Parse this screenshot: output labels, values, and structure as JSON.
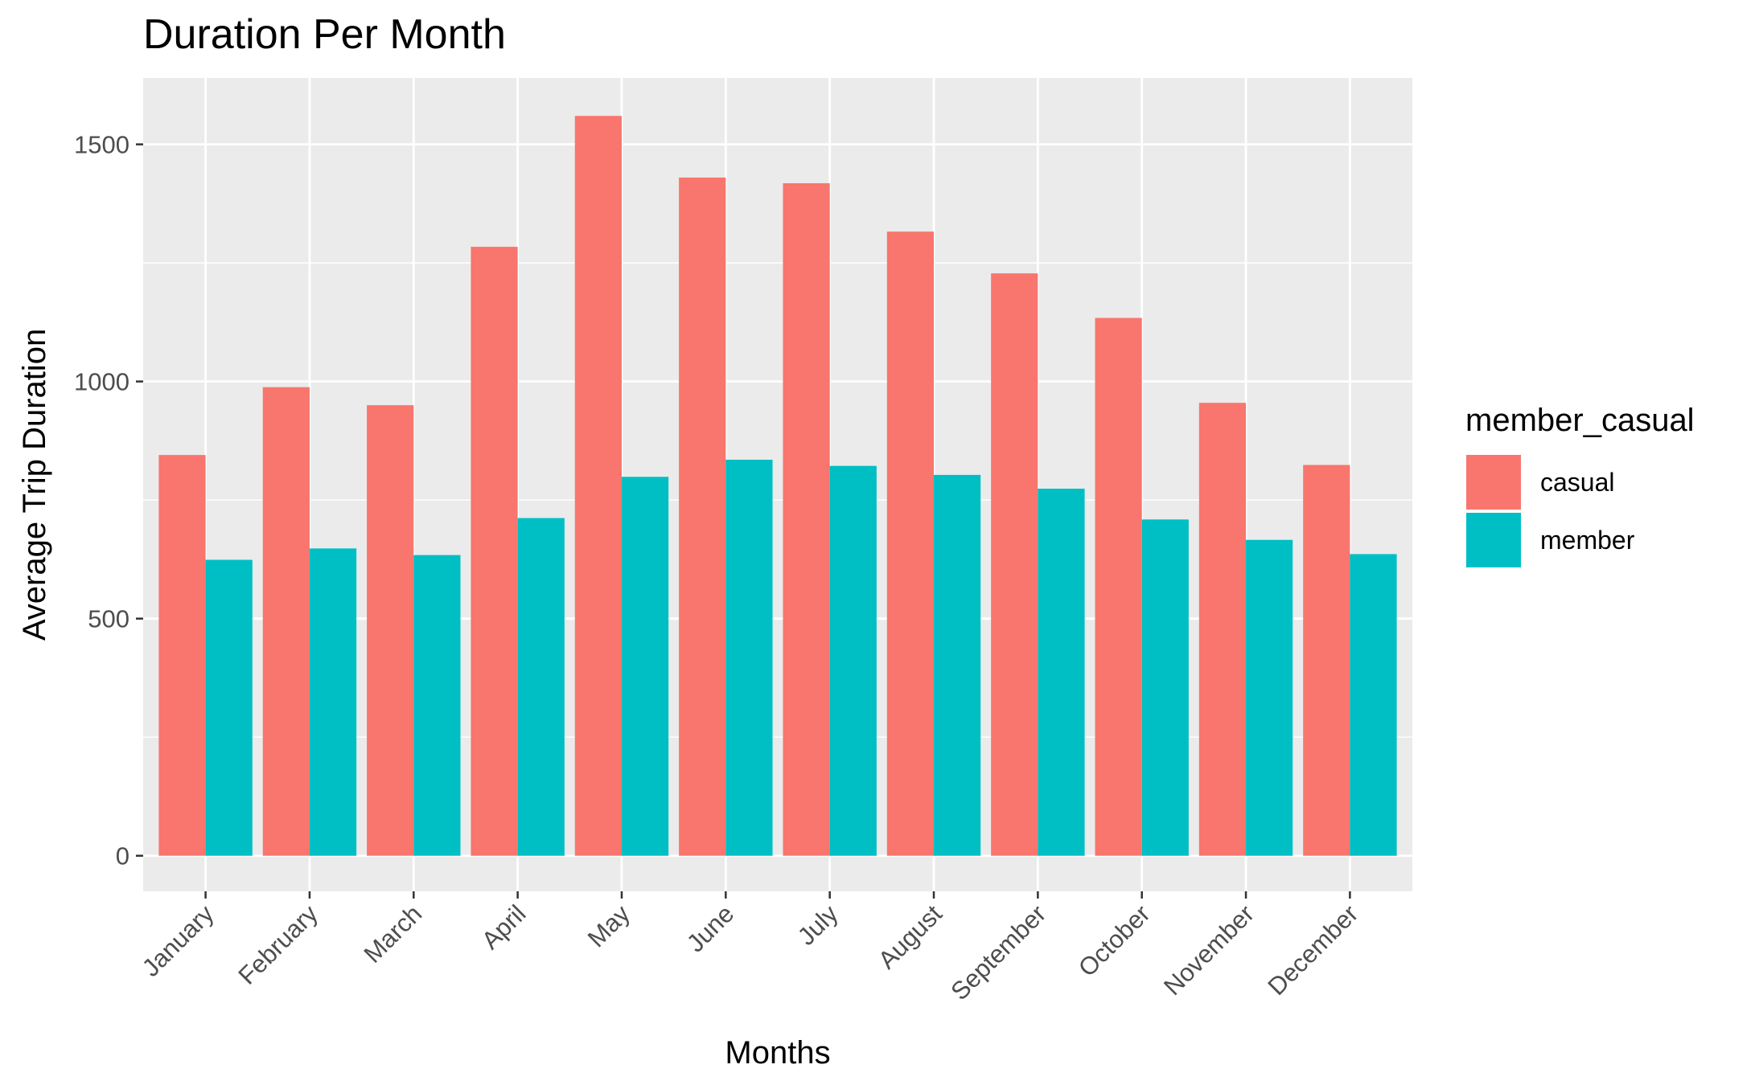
{
  "chart_data": {
    "type": "bar",
    "title": "Duration Per Month",
    "xlabel": "Months",
    "ylabel": "Average Trip Duration",
    "categories": [
      "January",
      "February",
      "March",
      "April",
      "May",
      "June",
      "July",
      "August",
      "September",
      "October",
      "November",
      "December"
    ],
    "series": [
      {
        "name": "casual",
        "color": "#F8766D",
        "values": [
          845,
          988,
          950,
          1284,
          1560,
          1430,
          1418,
          1316,
          1228,
          1134,
          955,
          824
        ]
      },
      {
        "name": "member",
        "color": "#00BFC4",
        "values": [
          624,
          648,
          634,
          712,
          799,
          835,
          822,
          803,
          774,
          709,
          666,
          636
        ]
      }
    ],
    "ylim": [
      -75,
      1640
    ],
    "yticks": [
      0,
      500,
      1000,
      1500
    ],
    "grid": true,
    "panel_background": "#EBEBEB",
    "grid_color": "#FFFFFF",
    "legend": {
      "title": "member_casual",
      "position": "right"
    }
  }
}
